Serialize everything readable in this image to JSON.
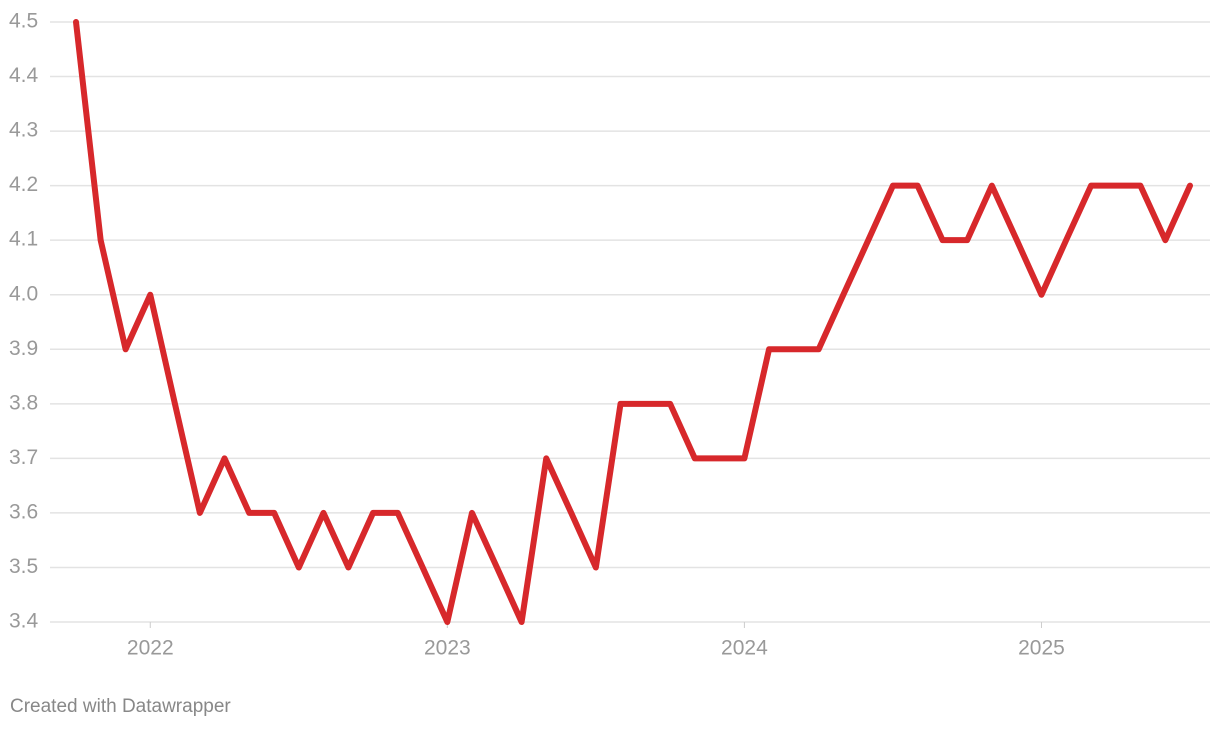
{
  "chart_data": {
    "type": "line",
    "x": [
      2021.75,
      2021.833,
      2021.917,
      2022,
      2022.083,
      2022.167,
      2022.25,
      2022.333,
      2022.417,
      2022.5,
      2022.583,
      2022.667,
      2022.75,
      2022.833,
      2022.917,
      2023,
      2023.083,
      2023.167,
      2023.25,
      2023.333,
      2023.417,
      2023.5,
      2023.583,
      2023.667,
      2023.75,
      2023.833,
      2023.917,
      2024,
      2024.083,
      2024.167,
      2024.25,
      2024.333,
      2024.417,
      2024.5,
      2024.583,
      2024.667,
      2024.75,
      2024.833,
      2024.917,
      2025,
      2025.083,
      2025.167,
      2025.25,
      2025.333,
      2025.417,
      2025.5
    ],
    "series": [
      {
        "color": "#d7282b",
        "values": [
          4.5,
          4.1,
          3.9,
          4.0,
          3.8,
          3.6,
          3.7,
          3.6,
          3.6,
          3.5,
          3.6,
          3.5,
          3.6,
          3.6,
          3.5,
          3.4,
          3.6,
          3.5,
          3.4,
          3.7,
          3.6,
          3.5,
          3.8,
          3.8,
          3.8,
          3.7,
          3.7,
          3.7,
          3.9,
          3.9,
          3.9,
          4.0,
          4.1,
          4.2,
          4.2,
          4.1,
          4.1,
          4.2,
          4.1,
          4.0,
          4.1,
          4.2,
          4.2,
          4.2,
          4.1,
          4.2
        ]
      }
    ],
    "xlim": [
      2021.75,
      2025.5
    ],
    "xticks": [
      2022,
      2023,
      2024,
      2025
    ],
    "ylim": [
      3.4,
      4.5
    ],
    "yticks": [
      3.4,
      3.5,
      3.6,
      3.7,
      3.8,
      3.9,
      {
        "value": 4,
        "label": "4.0"
      },
      4.1,
      4.2,
      4.3,
      4.4,
      4.5
    ],
    "grid": true,
    "credit": "Created with Datawrapper"
  }
}
